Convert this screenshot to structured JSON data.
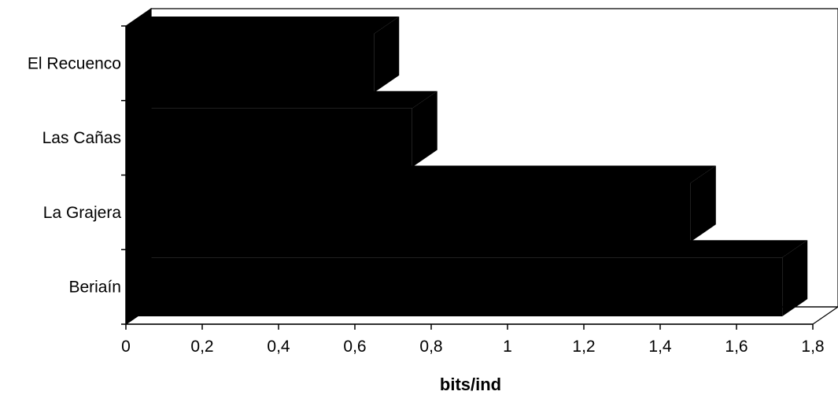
{
  "chart_data": {
    "type": "bar",
    "orientation": "horizontal",
    "style": "3d",
    "categories": [
      "El Recuenco",
      "Las Cañas",
      "La Grajera",
      "Beriaín"
    ],
    "values": [
      0.65,
      0.75,
      1.48,
      1.72
    ],
    "title": "",
    "xlabel": "bits/ind",
    "ylabel": "",
    "xlim": [
      0,
      1.8
    ],
    "xticks": [
      "0",
      "0,2",
      "0,4",
      "0,6",
      "0,8",
      "1",
      "1,2",
      "1,4",
      "1,6",
      "1,8"
    ],
    "grid": false,
    "legend": "none",
    "bar_color": "#000000"
  }
}
